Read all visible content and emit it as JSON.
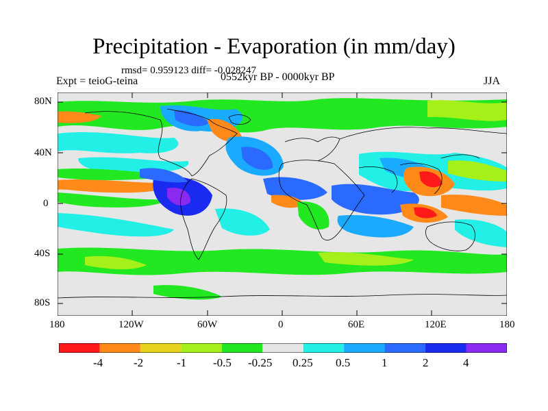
{
  "title": "Precipitation - Evaporation (in mm/day)",
  "stats_line": "rmsd= 0.959123 diff= -0.028247",
  "period": "0552kyr BP - 0000kyr BP",
  "experiment": "Expt = teioG-teina",
  "season": "JJA",
  "y_axis_labels": [
    "80N",
    "40N",
    "0",
    "40S",
    "80S"
  ],
  "x_axis_labels": [
    "180",
    "120W",
    "60W",
    "0",
    "60E",
    "120E",
    "180"
  ],
  "colorbar": {
    "labels": [
      "-4",
      "-2",
      "-1",
      "-0.5",
      "-0.25",
      "0.25",
      "0.5",
      "1",
      "2",
      "4"
    ],
    "colors": [
      "#ff1a1a",
      "#ff8a1a",
      "#e6d21a",
      "#a6f01a",
      "#22e822",
      "#e6e6e6",
      "#22f0e6",
      "#1aaaff",
      "#2a6aff",
      "#1a2af0",
      "#8a2af0"
    ]
  },
  "palette": {
    "neutral": "#e6e6e6",
    "coast": "#000000"
  }
}
